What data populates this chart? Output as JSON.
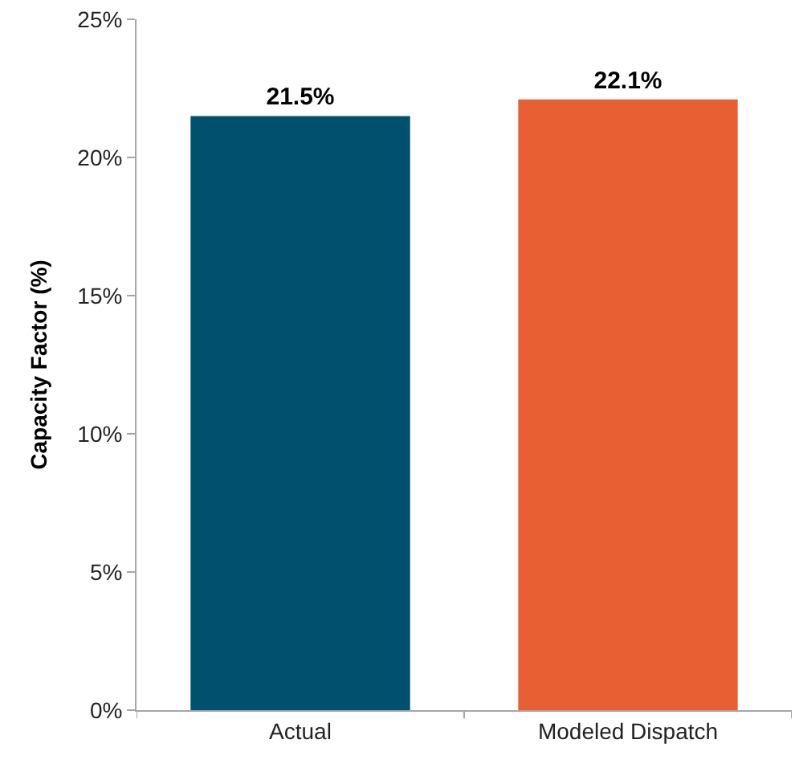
{
  "chart_data": {
    "type": "bar",
    "ylabel": "Capacity Factor (%)",
    "categories": [
      "Actual",
      "Modeled Dispatch"
    ],
    "values": [
      21.5,
      22.1
    ],
    "colors": [
      "#00506e",
      "#e85f33"
    ],
    "value_labels": [
      "21.5%",
      "22.1%"
    ],
    "ylim": [
      0,
      25
    ],
    "yticks": [
      {
        "value": 0,
        "label": "0%"
      },
      {
        "value": 5,
        "label": "5%"
      },
      {
        "value": 10,
        "label": "10%"
      },
      {
        "value": 15,
        "label": "15%"
      },
      {
        "value": 20,
        "label": "20%"
      },
      {
        "value": 25,
        "label": "25%"
      }
    ],
    "legend": false
  }
}
